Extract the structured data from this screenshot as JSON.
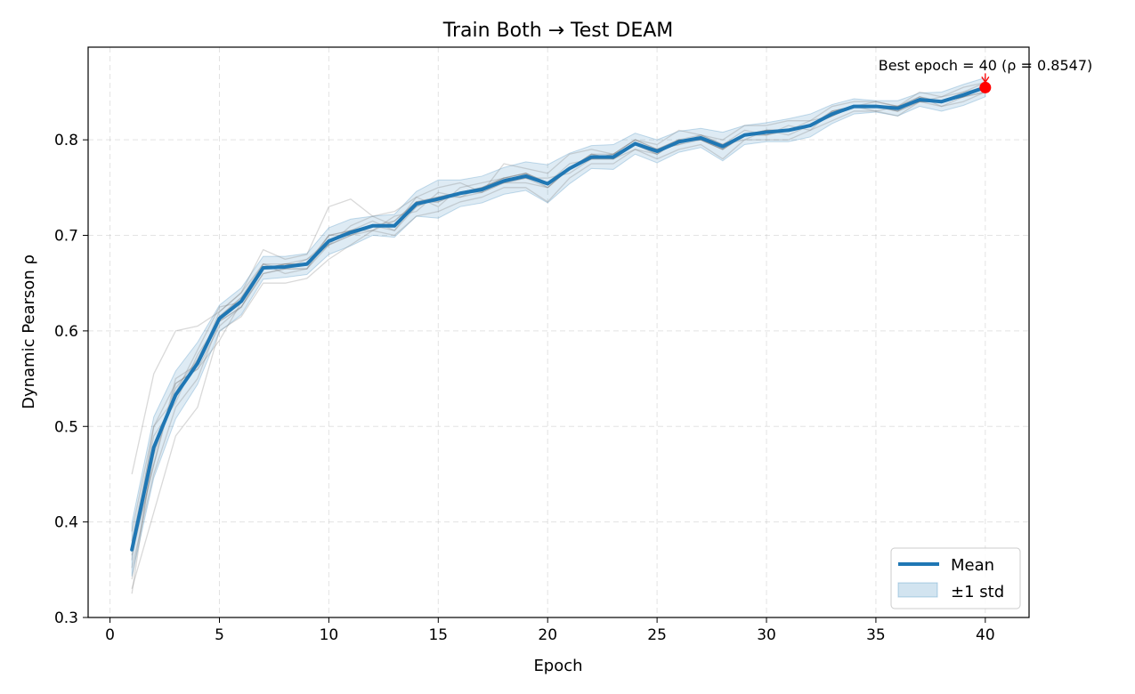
{
  "chart_data": {
    "type": "line",
    "title": "Train Both → Test DEAM",
    "xlabel": "Epoch",
    "ylabel": "Dynamic Pearson ρ",
    "xlim": [
      -1,
      42
    ],
    "ylim": [
      0.3,
      0.897
    ],
    "xticks": [
      0,
      5,
      10,
      15,
      20,
      25,
      30,
      35,
      40
    ],
    "yticks": [
      0.3,
      0.4,
      0.5,
      0.6,
      0.7,
      0.8
    ],
    "grid": true,
    "legend_position": "bottom-right",
    "colors": {
      "mean": "#1f77b4",
      "band": "#1f77b4",
      "runs": "#808080",
      "best": "#ff0000"
    },
    "x": [
      1,
      2,
      3,
      4,
      5,
      6,
      7,
      8,
      9,
      10,
      11,
      12,
      13,
      14,
      15,
      16,
      17,
      18,
      19,
      20,
      21,
      22,
      23,
      24,
      25,
      26,
      27,
      28,
      29,
      30,
      31,
      32,
      33,
      34,
      35,
      36,
      37,
      38,
      39,
      40
    ],
    "series": [
      {
        "name": "Mean",
        "values": [
          0.371,
          0.478,
          0.533,
          0.566,
          0.613,
          0.631,
          0.666,
          0.667,
          0.67,
          0.694,
          0.703,
          0.71,
          0.71,
          0.733,
          0.738,
          0.744,
          0.748,
          0.757,
          0.762,
          0.754,
          0.77,
          0.782,
          0.782,
          0.796,
          0.788,
          0.798,
          0.802,
          0.793,
          0.805,
          0.808,
          0.81,
          0.815,
          0.827,
          0.835,
          0.835,
          0.833,
          0.842,
          0.84,
          0.847,
          0.855
        ]
      }
    ],
    "band": {
      "name": "±1 std",
      "std": [
        0.028,
        0.032,
        0.025,
        0.022,
        0.014,
        0.014,
        0.012,
        0.011,
        0.011,
        0.014,
        0.014,
        0.01,
        0.012,
        0.013,
        0.02,
        0.014,
        0.014,
        0.014,
        0.015,
        0.02,
        0.016,
        0.012,
        0.013,
        0.011,
        0.012,
        0.011,
        0.01,
        0.015,
        0.01,
        0.01,
        0.012,
        0.012,
        0.01,
        0.008,
        0.006,
        0.008,
        0.007,
        0.01,
        0.011,
        0.01
      ]
    },
    "runs": [
      [
        0.352,
        0.45,
        0.52,
        0.55,
        0.61,
        0.625,
        0.66,
        0.665,
        0.665,
        0.7,
        0.705,
        0.715,
        0.705,
        0.735,
        0.735,
        0.745,
        0.75,
        0.76,
        0.76,
        0.75,
        0.77,
        0.785,
        0.78,
        0.795,
        0.785,
        0.8,
        0.8,
        0.79,
        0.805,
        0.805,
        0.81,
        0.815,
        0.825,
        0.835,
        0.835,
        0.83,
        0.845,
        0.84,
        0.845,
        0.855
      ],
      [
        0.45,
        0.555,
        0.6,
        0.605,
        0.62,
        0.64,
        0.685,
        0.675,
        0.68,
        0.73,
        0.738,
        0.72,
        0.725,
        0.74,
        0.75,
        0.755,
        0.745,
        0.775,
        0.77,
        0.765,
        0.785,
        0.79,
        0.785,
        0.8,
        0.795,
        0.81,
        0.805,
        0.8,
        0.815,
        0.815,
        0.82,
        0.82,
        0.835,
        0.84,
        0.84,
        0.835,
        0.85,
        0.845,
        0.855,
        0.86
      ],
      [
        0.33,
        0.41,
        0.49,
        0.52,
        0.6,
        0.615,
        0.65,
        0.65,
        0.655,
        0.675,
        0.69,
        0.705,
        0.7,
        0.72,
        0.725,
        0.735,
        0.74,
        0.75,
        0.75,
        0.735,
        0.76,
        0.775,
        0.775,
        0.79,
        0.78,
        0.79,
        0.795,
        0.78,
        0.8,
        0.8,
        0.8,
        0.81,
        0.82,
        0.83,
        0.83,
        0.825,
        0.84,
        0.835,
        0.84,
        0.85
      ],
      [
        0.34,
        0.47,
        0.54,
        0.57,
        0.615,
        0.635,
        0.67,
        0.67,
        0.67,
        0.7,
        0.7,
        0.71,
        0.715,
        0.735,
        0.74,
        0.74,
        0.75,
        0.755,
        0.765,
        0.755,
        0.775,
        0.78,
        0.78,
        0.795,
        0.79,
        0.8,
        0.8,
        0.79,
        0.805,
        0.81,
        0.81,
        0.815,
        0.83,
        0.835,
        0.835,
        0.835,
        0.84,
        0.84,
        0.845,
        0.855
      ],
      [
        0.325,
        0.48,
        0.535,
        0.58,
        0.625,
        0.63,
        0.665,
        0.67,
        0.675,
        0.69,
        0.71,
        0.72,
        0.71,
        0.74,
        0.73,
        0.75,
        0.755,
        0.76,
        0.765,
        0.755,
        0.77,
        0.78,
        0.785,
        0.8,
        0.79,
        0.795,
        0.805,
        0.795,
        0.81,
        0.805,
        0.815,
        0.81,
        0.83,
        0.835,
        0.835,
        0.83,
        0.84,
        0.84,
        0.85,
        0.855
      ],
      [
        0.36,
        0.5,
        0.545,
        0.56,
        0.59,
        0.63,
        0.67,
        0.66,
        0.665,
        0.69,
        0.7,
        0.705,
        0.72,
        0.725,
        0.745,
        0.74,
        0.745,
        0.755,
        0.76,
        0.76,
        0.765,
        0.78,
        0.78,
        0.79,
        0.785,
        0.8,
        0.8,
        0.795,
        0.8,
        0.81,
        0.805,
        0.815,
        0.825,
        0.835,
        0.83,
        0.835,
        0.84,
        0.84,
        0.845,
        0.85
      ],
      [
        0.38,
        0.49,
        0.525,
        0.575,
        0.61,
        0.625,
        0.66,
        0.665,
        0.665,
        0.695,
        0.705,
        0.71,
        0.705,
        0.73,
        0.74,
        0.745,
        0.745,
        0.755,
        0.755,
        0.75,
        0.77,
        0.785,
        0.78,
        0.795,
        0.79,
        0.795,
        0.8,
        0.79,
        0.805,
        0.81,
        0.81,
        0.815,
        0.825,
        0.835,
        0.84,
        0.835,
        0.845,
        0.835,
        0.845,
        0.855
      ],
      [
        0.37,
        0.46,
        0.55,
        0.565,
        0.62,
        0.64,
        0.67,
        0.665,
        0.675,
        0.695,
        0.705,
        0.705,
        0.715,
        0.735,
        0.735,
        0.745,
        0.75,
        0.76,
        0.765,
        0.75,
        0.77,
        0.78,
        0.785,
        0.8,
        0.79,
        0.8,
        0.805,
        0.795,
        0.805,
        0.805,
        0.81,
        0.82,
        0.825,
        0.835,
        0.835,
        0.835,
        0.84,
        0.845,
        0.85,
        0.86
      ],
      [
        0.39,
        0.5,
        0.53,
        0.57,
        0.615,
        0.635,
        0.665,
        0.67,
        0.67,
        0.69,
        0.7,
        0.71,
        0.71,
        0.73,
        0.74,
        0.745,
        0.75,
        0.755,
        0.76,
        0.755,
        0.77,
        0.785,
        0.785,
        0.795,
        0.79,
        0.8,
        0.8,
        0.795,
        0.805,
        0.81,
        0.81,
        0.815,
        0.83,
        0.835,
        0.835,
        0.83,
        0.84,
        0.84,
        0.845,
        0.855
      ],
      [
        0.365,
        0.46,
        0.545,
        0.56,
        0.605,
        0.625,
        0.665,
        0.67,
        0.67,
        0.7,
        0.705,
        0.71,
        0.71,
        0.735,
        0.74,
        0.745,
        0.75,
        0.76,
        0.765,
        0.755,
        0.77,
        0.78,
        0.78,
        0.795,
        0.785,
        0.8,
        0.8,
        0.79,
        0.805,
        0.81,
        0.81,
        0.815,
        0.825,
        0.835,
        0.835,
        0.835,
        0.845,
        0.84,
        0.845,
        0.85
      ]
    ],
    "best": {
      "epoch": 40,
      "value": 0.8547,
      "label": "Best epoch = 40 (ρ = 0.8547)"
    }
  }
}
